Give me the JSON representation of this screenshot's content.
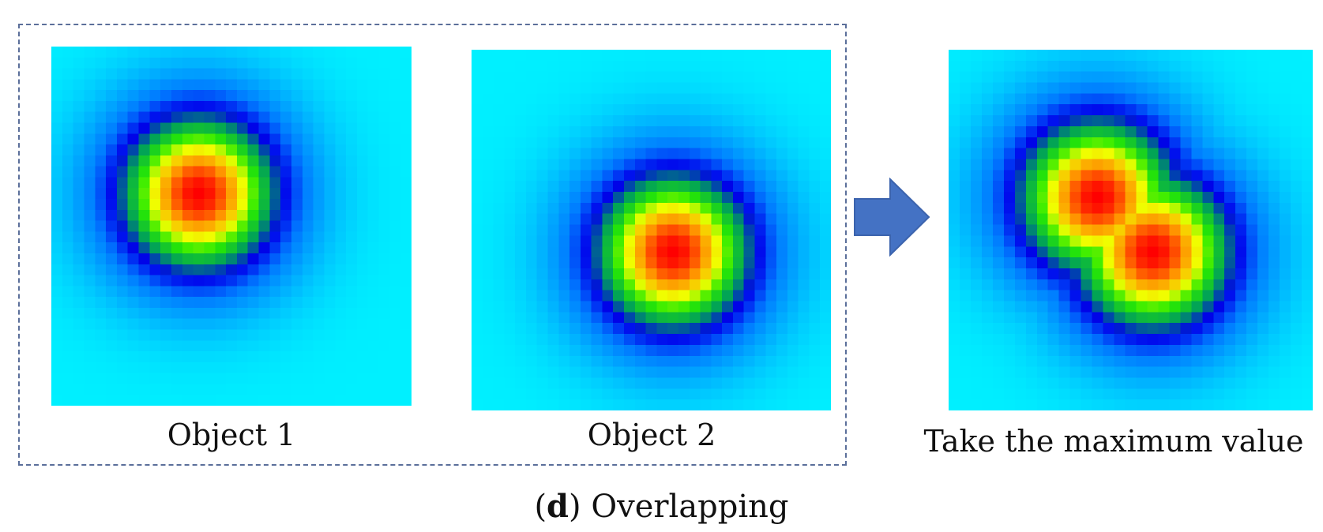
{
  "figure": {
    "panels": [
      {
        "label": "Object 1"
      },
      {
        "label": "Object 2"
      },
      {
        "label": "Take the maximum value"
      }
    ],
    "caption": {
      "letter": "d",
      "text": "Overlapping"
    },
    "colormap": "jet",
    "arrow_color": "#4472c4",
    "group_border_color": "#5b6f9a"
  }
}
